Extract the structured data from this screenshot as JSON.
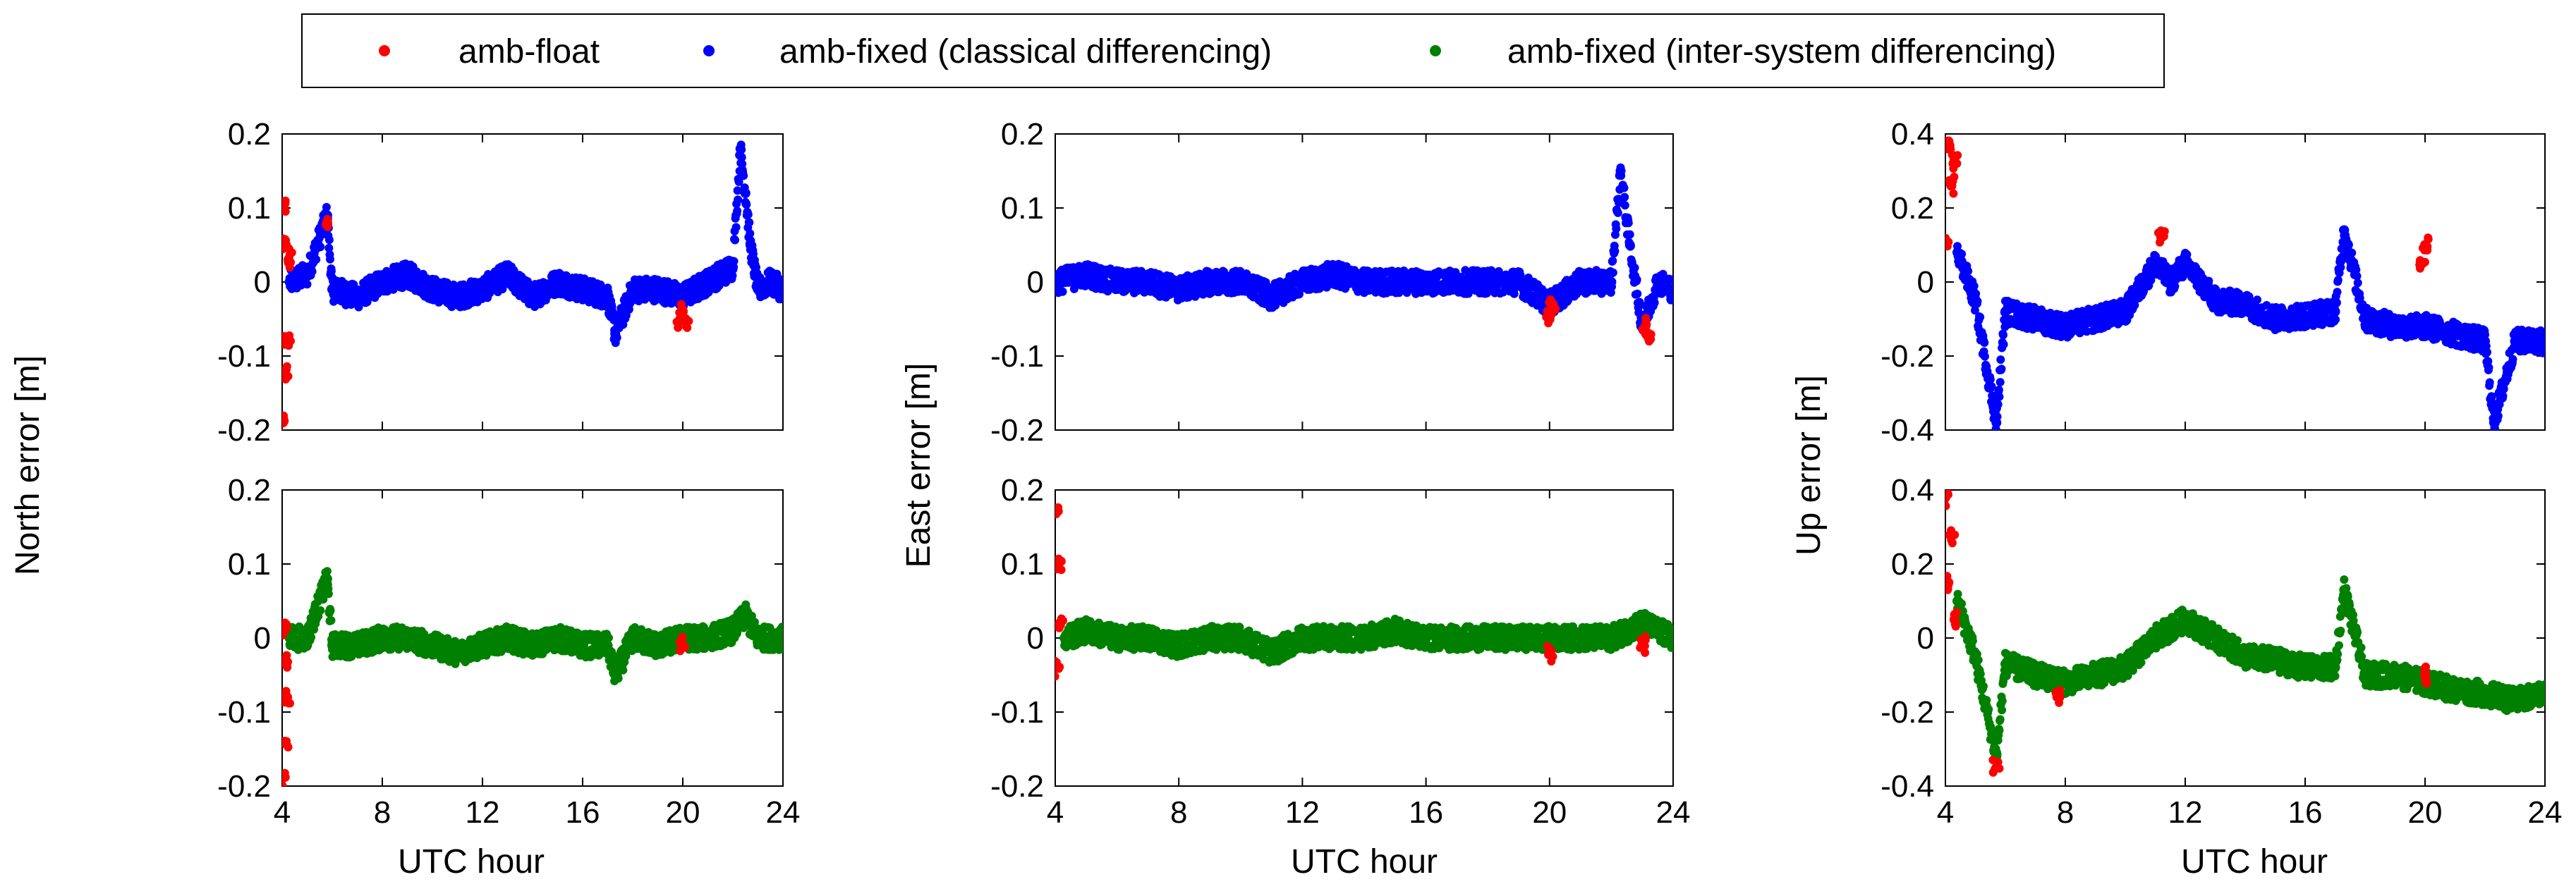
{
  "legend": {
    "items": [
      {
        "label": "amb-float",
        "color": "#ff0000"
      },
      {
        "label": "amb-fixed (classical differencing)",
        "color": "#0000ff"
      },
      {
        "label": "amb-fixed (inter-system differencing)",
        "color": "#008000"
      }
    ]
  },
  "labels": {
    "north": "North error [m]",
    "east": "East error [m]",
    "up": "Up error [m]",
    "xlabel": "UTC hour"
  },
  "chart_data": [
    {
      "type": "scatter",
      "panel": "north-top",
      "xlim": [
        4,
        24
      ],
      "ylim": [
        -0.2,
        0.2
      ],
      "xticks": [
        "4",
        "8",
        "12",
        "16",
        "20",
        "24"
      ],
      "yticks": [
        "-0.2",
        "-0.1",
        "0",
        "0.1",
        "0.2"
      ],
      "ylabel": "North error [m]",
      "xlabel": "",
      "series": [
        {
          "name": "amb-float",
          "color": "#ff0000",
          "x": [
            4.0,
            4.05,
            4.1,
            4.15,
            4.2,
            4.25,
            5.8,
            19.9,
            20.0,
            20.1
          ],
          "y": [
            -0.19,
            0.1,
            -0.12,
            0.05,
            -0.08,
            0.03,
            0.08,
            -0.05,
            -0.04,
            -0.05
          ]
        },
        {
          "name": "amb-fixed (classical differencing)",
          "color": "#0000ff",
          "x": [
            4.3,
            5,
            5.8,
            6,
            7,
            8,
            9,
            10,
            11,
            12,
            13,
            14,
            15,
            16,
            17,
            17.3,
            18,
            19,
            20,
            21,
            22,
            22.3,
            22.5,
            22.7,
            23,
            23.5,
            24
          ],
          "y": [
            0.0,
            0.01,
            0.09,
            -0.01,
            -0.02,
            0.0,
            0.01,
            -0.01,
            -0.02,
            -0.01,
            0.01,
            -0.02,
            0.0,
            -0.01,
            -0.02,
            -0.07,
            -0.01,
            -0.01,
            -0.02,
            0.0,
            0.02,
            0.18,
            0.12,
            0.05,
            -0.01,
            0.0,
            -0.01
          ]
        }
      ]
    },
    {
      "type": "scatter",
      "panel": "north-bottom",
      "xlim": [
        4,
        24
      ],
      "ylim": [
        -0.2,
        0.2
      ],
      "xticks": [
        "4",
        "8",
        "12",
        "16",
        "20",
        "24"
      ],
      "yticks": [
        "-0.2",
        "-0.1",
        "0",
        "0.1",
        "0.2"
      ],
      "ylabel": "North error [m]",
      "xlabel": "UTC hour",
      "series": [
        {
          "name": "amb-float",
          "color": "#ff0000",
          "x": [
            4.0,
            4.05,
            4.1,
            4.15,
            4.2,
            20.0
          ],
          "y": [
            -0.19,
            0.01,
            -0.14,
            -0.03,
            -0.08,
            -0.01
          ]
        },
        {
          "name": "amb-fixed (inter-system differencing)",
          "color": "#008000",
          "x": [
            4.3,
            5,
            5.8,
            6,
            7,
            8,
            9,
            10,
            11,
            12,
            13,
            14,
            15,
            16,
            17,
            17.3,
            18,
            19,
            20,
            21,
            22,
            22.5,
            23,
            24
          ],
          "y": [
            0.0,
            0.0,
            0.08,
            -0.01,
            -0.01,
            0.0,
            0.0,
            -0.01,
            -0.02,
            -0.01,
            0.0,
            -0.01,
            0.0,
            -0.01,
            -0.01,
            -0.05,
            0.0,
            -0.01,
            0.0,
            0.0,
            0.01,
            0.03,
            0.0,
            0.0
          ]
        }
      ]
    },
    {
      "type": "scatter",
      "panel": "east-top",
      "xlim": [
        4,
        24
      ],
      "ylim": [
        -0.2,
        0.2
      ],
      "xticks": [
        "4",
        "8",
        "12",
        "16",
        "20",
        "24"
      ],
      "yticks": [
        "-0.2",
        "-0.1",
        "0",
        "0.1",
        "0.2"
      ],
      "ylabel": "East error [m]",
      "xlabel": "",
      "series": [
        {
          "name": "amb-float",
          "color": "#ff0000",
          "x": [
            20.0,
            20.1,
            23.1,
            23.2
          ],
          "y": [
            -0.05,
            -0.03,
            -0.06,
            -0.07
          ]
        },
        {
          "name": "amb-fixed (classical differencing)",
          "color": "#0000ff",
          "x": [
            4,
            5,
            6,
            7,
            8,
            9,
            10,
            11,
            12,
            13,
            14,
            15,
            16,
            17,
            18,
            19,
            20,
            21,
            22,
            22.3,
            22.6,
            23,
            23.5,
            24
          ],
          "y": [
            0.0,
            0.01,
            0.0,
            0.0,
            -0.01,
            0.0,
            0.0,
            -0.02,
            0.0,
            0.01,
            0.0,
            0.0,
            0.0,
            0.0,
            0.0,
            0.0,
            -0.03,
            0.0,
            0.0,
            0.15,
            0.05,
            -0.06,
            0.0,
            -0.01
          ]
        }
      ]
    },
    {
      "type": "scatter",
      "panel": "east-bottom",
      "xlim": [
        4,
        24
      ],
      "ylim": [
        -0.2,
        0.2
      ],
      "xticks": [
        "4",
        "8",
        "12",
        "16",
        "20",
        "24"
      ],
      "yticks": [
        "-0.2",
        "-0.1",
        "0",
        "0.1",
        "0.2"
      ],
      "ylabel": "East error [m]",
      "xlabel": "UTC hour",
      "series": [
        {
          "name": "amb-float",
          "color": "#ff0000",
          "x": [
            4.0,
            4.05,
            4.1,
            4.15,
            20.0,
            23.0
          ],
          "y": [
            0.17,
            -0.04,
            0.1,
            0.02,
            -0.02,
            -0.01
          ]
        },
        {
          "name": "amb-fixed (inter-system differencing)",
          "color": "#008000",
          "x": [
            4.3,
            5,
            6,
            7,
            8,
            9,
            10,
            11,
            12,
            13,
            14,
            15,
            16,
            17,
            18,
            19,
            20,
            21,
            22,
            23,
            24
          ],
          "y": [
            0.0,
            0.01,
            0.0,
            0.0,
            -0.01,
            0.0,
            0.0,
            -0.02,
            0.0,
            0.0,
            0.0,
            0.01,
            0.0,
            0.0,
            0.0,
            0.0,
            0.0,
            0.0,
            0.0,
            0.02,
            0.0
          ]
        }
      ]
    },
    {
      "type": "scatter",
      "panel": "up-top",
      "xlim": [
        4,
        24
      ],
      "ylim": [
        -0.4,
        0.4
      ],
      "xticks": [
        "4",
        "8",
        "12",
        "16",
        "20",
        "24"
      ],
      "yticks": [
        "-0.4",
        "-0.2",
        "0",
        "0.2",
        "0.4"
      ],
      "ylabel": "Up error [m]",
      "xlabel": "",
      "series": [
        {
          "name": "amb-float",
          "color": "#ff0000",
          "x": [
            4.0,
            4.1,
            4.2,
            4.3,
            11.2,
            19.9,
            20.0
          ],
          "y": [
            0.1,
            0.38,
            0.26,
            0.33,
            0.12,
            0.05,
            0.1
          ]
        },
        {
          "name": "amb-fixed (classical differencing)",
          "color": "#0000ff",
          "x": [
            4.4,
            5,
            5.7,
            6,
            7,
            8,
            9,
            10,
            11,
            11.5,
            12,
            13,
            14,
            15,
            16,
            17,
            17.3,
            18,
            19,
            20,
            21,
            22,
            22.3,
            23,
            24
          ],
          "y": [
            0.08,
            -0.05,
            -0.38,
            -0.08,
            -0.1,
            -0.12,
            -0.1,
            -0.08,
            0.05,
            0.0,
            0.05,
            -0.05,
            -0.06,
            -0.1,
            -0.09,
            -0.08,
            0.14,
            -0.1,
            -0.12,
            -0.12,
            -0.14,
            -0.16,
            -0.38,
            -0.16,
            -0.16
          ]
        }
      ]
    },
    {
      "type": "scatter",
      "panel": "up-bottom",
      "xlim": [
        4,
        24
      ],
      "ylim": [
        -0.4,
        0.4
      ],
      "xticks": [
        "4",
        "8",
        "12",
        "16",
        "20",
        "24"
      ],
      "yticks": [
        "-0.4",
        "-0.2",
        "0",
        "0.2",
        "0.4"
      ],
      "ylabel": "Up error [m]",
      "xlabel": "UTC hour",
      "series": [
        {
          "name": "amb-float",
          "color": "#ff0000",
          "x": [
            4.0,
            4.1,
            4.2,
            4.3,
            5.7,
            7.8,
            20.0
          ],
          "y": [
            0.38,
            0.15,
            0.28,
            0.05,
            -0.35,
            -0.16,
            -0.1
          ]
        },
        {
          "name": "amb-fixed (inter-system differencing)",
          "color": "#008000",
          "x": [
            4.4,
            5,
            5.7,
            6,
            7,
            8,
            9,
            10,
            11,
            12,
            13,
            14,
            15,
            16,
            17,
            17.3,
            18,
            19,
            20,
            21,
            22,
            23,
            24
          ],
          "y": [
            0.1,
            -0.05,
            -0.32,
            -0.07,
            -0.1,
            -0.12,
            -0.1,
            -0.08,
            0.0,
            0.05,
            0.0,
            -0.05,
            -0.06,
            -0.08,
            -0.08,
            0.13,
            -0.1,
            -0.1,
            -0.12,
            -0.14,
            -0.15,
            -0.17,
            -0.15
          ]
        }
      ]
    }
  ]
}
